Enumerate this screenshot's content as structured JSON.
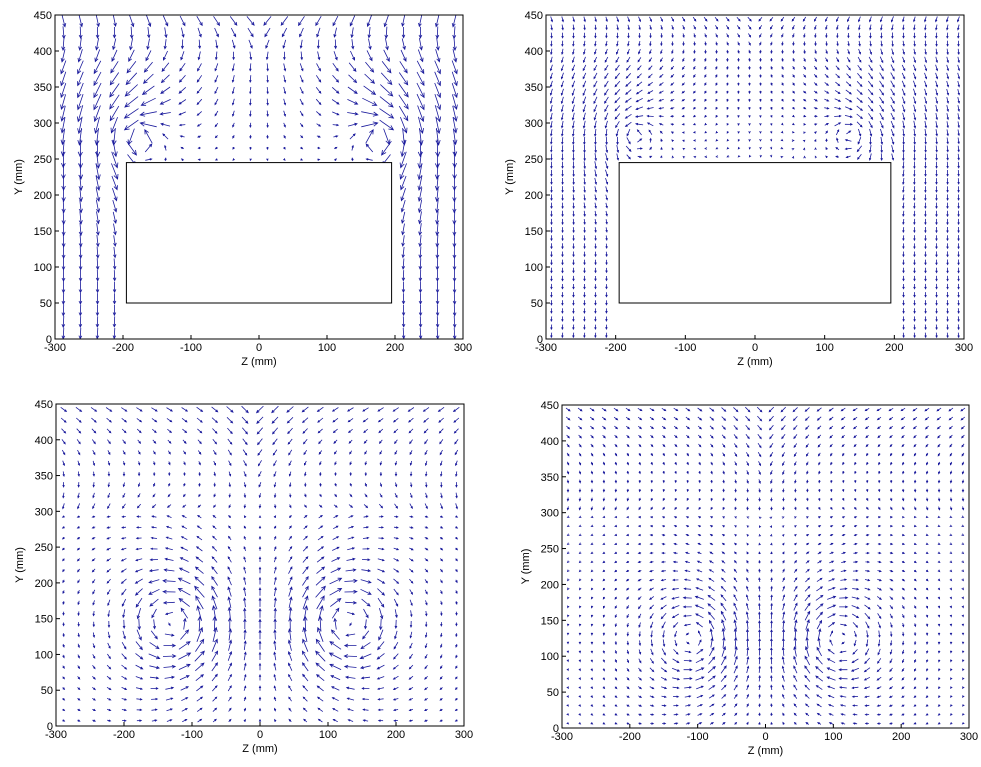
{
  "colors": {
    "vector": "#1a1a9c",
    "axis": "#000000",
    "background": "#ffffff"
  },
  "chart_data": [
    {
      "type": "quiver",
      "xlabel": "Z (mm)",
      "ylabel": "Y (mm)",
      "xlim": [
        -300,
        300
      ],
      "ylim": [
        0,
        450
      ],
      "xticks": [
        "-300",
        "-200",
        "-100",
        "0",
        "100",
        "200",
        "300"
      ],
      "yticks": [
        "0",
        "50",
        "100",
        "150",
        "200",
        "250",
        "300",
        "350",
        "400",
        "450"
      ],
      "body": {
        "z": [
          -195,
          195
        ],
        "y": [
          50,
          245
        ]
      },
      "flow": "upper-wake",
      "vortices": [
        {
          "z": -180,
          "y": 280
        },
        {
          "z": 180,
          "y": 280
        }
      ]
    },
    {
      "type": "quiver",
      "xlabel": "Z (mm)",
      "ylabel": "Y (mm)",
      "xlim": [
        -300,
        300
      ],
      "ylim": [
        0,
        450
      ],
      "xticks": [
        "-300",
        "-200",
        "-100",
        "0",
        "100",
        "200",
        "300"
      ],
      "yticks": [
        "0",
        "50",
        "100",
        "150",
        "200",
        "250",
        "300",
        "350",
        "400",
        "450"
      ],
      "body": {
        "z": [
          -195,
          195
        ],
        "y": [
          50,
          245
        ]
      },
      "flow": "upper-wake-fine",
      "vortices": [
        {
          "z": -175,
          "y": 285
        },
        {
          "z": 140,
          "y": 285
        }
      ]
    },
    {
      "type": "quiver",
      "xlabel": "Z (mm)",
      "ylabel": "Y (mm)",
      "xlim": [
        -300,
        300
      ],
      "ylim": [
        0,
        450
      ],
      "xticks": [
        "-300",
        "-200",
        "-100",
        "0",
        "100",
        "200",
        "300"
      ],
      "yticks": [
        "0",
        "50",
        "100",
        "150",
        "200",
        "250",
        "300",
        "350",
        "400",
        "450"
      ],
      "flow": "counter-rotating-vortices",
      "vortices": [
        {
          "z": -125,
          "y": 145
        },
        {
          "z": 125,
          "y": 145
        }
      ]
    },
    {
      "type": "quiver",
      "xlabel": "Z (mm)",
      "ylabel": "Y (mm)",
      "xlim": [
        -300,
        300
      ],
      "ylim": [
        0,
        450
      ],
      "xticks": [
        "-300",
        "-200",
        "-100",
        "0",
        "100",
        "200",
        "300"
      ],
      "yticks": [
        "0",
        "50",
        "100",
        "150",
        "200",
        "250",
        "300",
        "350",
        "400",
        "450"
      ],
      "flow": "counter-rotating-vortices-fine",
      "vortices": [
        {
          "z": -105,
          "y": 125
        },
        {
          "z": 105,
          "y": 125
        }
      ]
    }
  ]
}
